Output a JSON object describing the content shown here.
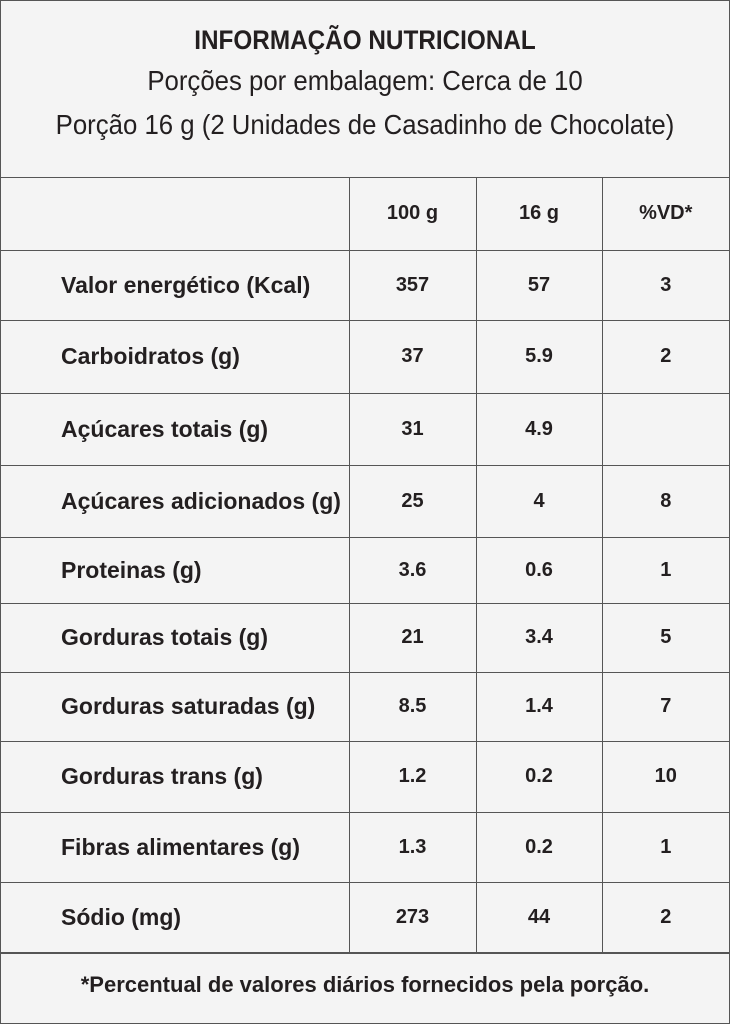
{
  "header": {
    "title": "INFORMAÇÃO NUTRICIONAL",
    "line1": "Porções por embalagem: Cerca de 10",
    "line2": "Porção 16 g (2 Unidades de Casadinho de Chocolate)"
  },
  "table": {
    "columns": [
      "100 g",
      "16 g",
      "%VD*"
    ],
    "rows": [
      [
        "Valor energético (Kcal)",
        "357",
        "57",
        "3"
      ],
      [
        "Carboidratos (g)",
        "37",
        "5.9",
        "2"
      ],
      [
        "Açúcares totais (g)",
        "31",
        "4.9",
        null
      ],
      [
        "Açúcares adicionados (g)",
        "25",
        "4",
        "8"
      ],
      [
        "Proteinas (g)",
        "3.6",
        "0.6",
        "1"
      ],
      [
        "Gorduras totais (g)",
        "21",
        "3.4",
        "5"
      ],
      [
        "Gorduras saturadas (g)",
        "8.5",
        "1.4",
        "7"
      ],
      [
        "Gorduras trans (g)",
        "1.2",
        "0.2",
        "10"
      ],
      [
        "Fibras alimentares (g)",
        "1.3",
        "0.2",
        "1"
      ],
      [
        "Sódio (mg)",
        "273",
        "44",
        "2"
      ]
    ]
  },
  "footnote": "*Percentual de valores diários fornecidos pela porção."
}
